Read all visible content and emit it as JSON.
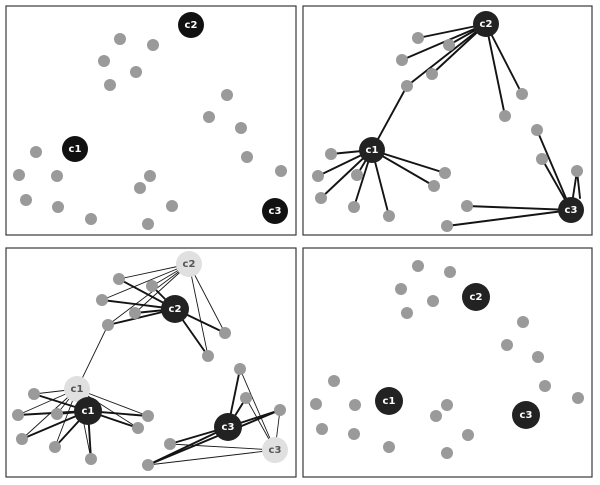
{
  "colors": {
    "point": "#9a9a9a",
    "centroid_dark": "#111111",
    "centroid_dark2": "#222222",
    "centroid_ghost": "#e0e0e0",
    "text_light": "#ffffff",
    "text_dark": "#555555"
  },
  "centroid_labels": {
    "c1": "c1",
    "c2": "c2",
    "c3": "c3"
  },
  "panels": {
    "initial_centroids": {
      "caption": ""
    },
    "assignment_step": {
      "caption": ""
    },
    "centroid_update": {
      "caption": ""
    },
    "converged": {
      "caption": ""
    }
  }
}
